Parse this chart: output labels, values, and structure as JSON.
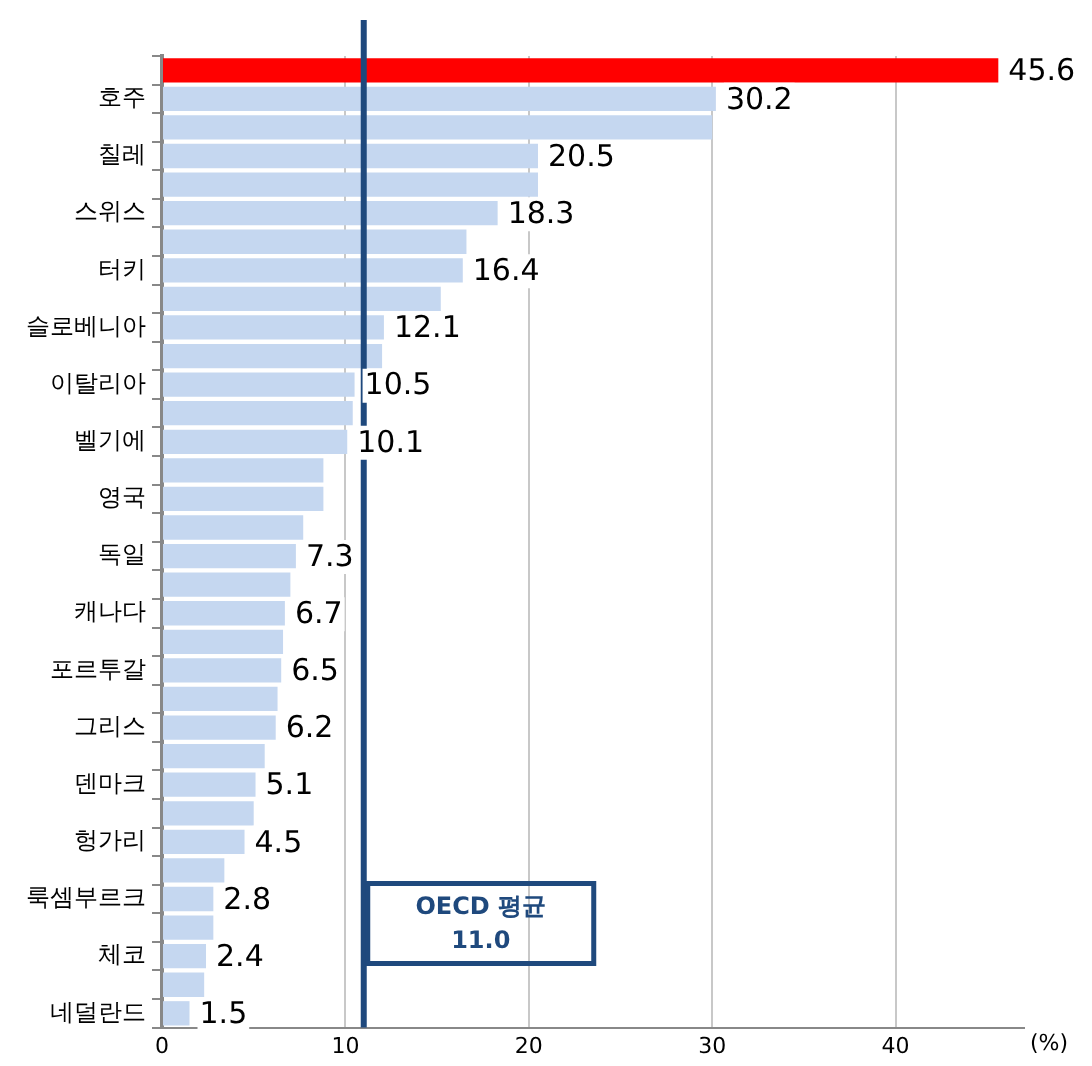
{
  "chart_data": {
    "type": "bar",
    "orientation": "horizontal",
    "xlabel": "(%)",
    "categories": [
      null,
      "호주",
      null,
      "칠레",
      null,
      "스위스",
      null,
      "터키",
      null,
      "슬로베니아",
      null,
      "이탈리아",
      null,
      "벨기에",
      null,
      "영국",
      null,
      "독일",
      null,
      "캐나다",
      null,
      "포르투갈",
      null,
      "그리스",
      null,
      "덴마크",
      null,
      "헝가리",
      null,
      "룩셈부르크",
      null,
      "체코",
      null,
      "네덜란드"
    ],
    "values": [
      45.6,
      30.2,
      30.0,
      20.5,
      20.5,
      18.3,
      16.6,
      16.4,
      15.2,
      12.1,
      12.0,
      10.5,
      10.4,
      10.1,
      8.8,
      8.8,
      7.7,
      7.3,
      7.0,
      6.7,
      6.6,
      6.5,
      6.3,
      6.2,
      5.6,
      5.1,
      5.0,
      4.5,
      3.4,
      2.8,
      2.8,
      2.4,
      2.3,
      1.5
    ],
    "colors": [
      "#ff0000",
      "#c5d7f0",
      "#c5d7f0",
      "#c5d7f0",
      "#c5d7f0",
      "#c5d7f0",
      "#c5d7f0",
      "#c5d7f0",
      "#c5d7f0",
      "#c5d7f0",
      "#c5d7f0",
      "#c5d7f0",
      "#c5d7f0",
      "#c5d7f0",
      "#c5d7f0",
      "#c5d7f0",
      "#c5d7f0",
      "#c5d7f0",
      "#c5d7f0",
      "#c5d7f0",
      "#c5d7f0",
      "#c5d7f0",
      "#c5d7f0",
      "#c5d7f0",
      "#c5d7f0",
      "#c5d7f0",
      "#c5d7f0",
      "#c5d7f0",
      "#c5d7f0",
      "#c5d7f0",
      "#c5d7f0",
      "#c5d7f0",
      "#c5d7f0",
      "#c5d7f0"
    ],
    "value_labels": [
      "45.6",
      "30.2",
      null,
      "20.5",
      null,
      "18.3",
      null,
      "16.4",
      null,
      "12.1",
      null,
      "10.5",
      null,
      "10.1",
      null,
      null,
      null,
      "7.3",
      null,
      "6.7",
      null,
      "6.5",
      null,
      "6.2",
      null,
      "5.1",
      null,
      "4.5",
      null,
      "2.8",
      null,
      "2.4",
      null,
      "1.5"
    ],
    "xlim": [
      0,
      47
    ],
    "xticks": [
      0,
      10,
      20,
      30,
      40
    ],
    "grid": "x",
    "ref_lines": [
      {
        "axis": "x",
        "value": 11.0,
        "label": "OECD 평균\n11.0",
        "color": "#1f497d"
      }
    ]
  }
}
